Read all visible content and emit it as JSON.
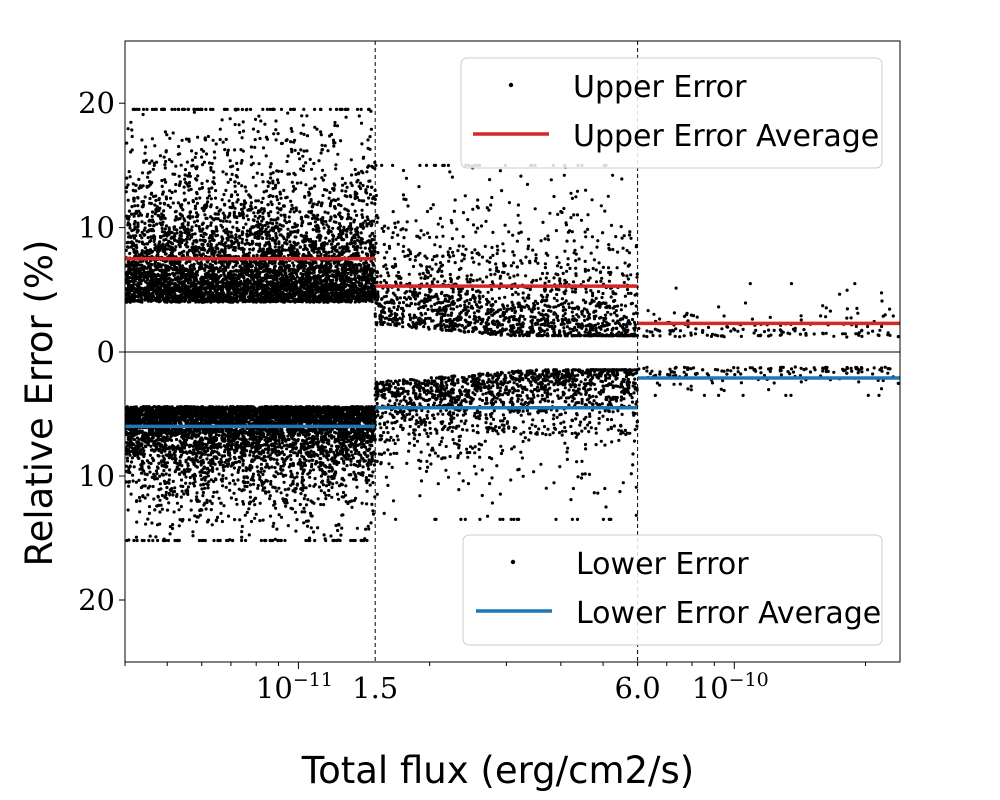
{
  "chart_data": {
    "type": "scatter",
    "xlabel": "Total flux (erg/cm2/s)",
    "ylabel": "Relative Error (%)",
    "x_scale": "log",
    "x_range": [
      4e-12,
      2.4e-10
    ],
    "x_tick_labels": {
      "major": [
        {
          "value": 1e-11,
          "base": "10",
          "exp": "−11"
        },
        {
          "value": 1e-10,
          "base": "10",
          "exp": "−10"
        }
      ],
      "boundaries": [
        {
          "value": 1.5e-11,
          "label": "1.5"
        },
        {
          "value": 6e-11,
          "label": "6.0"
        }
      ]
    },
    "panels": [
      {
        "name": "upper",
        "ylim": [
          0,
          25
        ],
        "y_inverted": false,
        "y_ticks": [
          0,
          10,
          20
        ],
        "series": [
          {
            "name": "Upper Error",
            "kind": "points",
            "color": "#000000"
          },
          {
            "name": "Upper Error Average",
            "kind": "line",
            "color": "#d62728",
            "segments": [
              {
                "x0": 4e-12,
                "x1": 1.5e-11,
                "y": 7.5
              },
              {
                "x0": 1.5e-11,
                "x1": 6e-11,
                "y": 5.3
              },
              {
                "x0": 6e-11,
                "x1": 2.4e-10,
                "y": 2.3
              }
            ]
          }
        ],
        "legend_position": "top-right"
      },
      {
        "name": "lower",
        "ylim": [
          0,
          25
        ],
        "y_inverted": true,
        "y_ticks": [
          0,
          10,
          20
        ],
        "series": [
          {
            "name": "Lower Error",
            "kind": "points",
            "color": "#000000"
          },
          {
            "name": "Lower Error Average",
            "kind": "line",
            "color": "#1f77b4",
            "segments": [
              {
                "x0": 4e-12,
                "x1": 1.5e-11,
                "y": 6.0
              },
              {
                "x0": 1.5e-11,
                "x1": 6e-11,
                "y": 4.5
              },
              {
                "x0": 6e-11,
                "x1": 2.4e-10,
                "y": 2.1
              }
            ]
          }
        ],
        "legend_position": "bottom-right"
      }
    ],
    "point_distribution": [
      {
        "x0": 4e-12,
        "x1": 1.5e-11,
        "count": 5200,
        "upper": {
          "floor": 4.0,
          "tail": 4.5,
          "max": 19.5
        },
        "lower": {
          "floor": 4.4,
          "tail": 3.0,
          "max": 15.2
        }
      },
      {
        "x0": 1.5e-11,
        "x1": 6e-11,
        "count": 1600,
        "upper": {
          "floor": 2.2,
          "tail": 4.0,
          "max": 15.0
        },
        "lower": {
          "floor": 2.4,
          "tail": 3.0,
          "max": 13.5
        }
      },
      {
        "x0": 6e-11,
        "x1": 2.4e-10,
        "count": 160,
        "upper": {
          "floor": 1.2,
          "tail": 1.2,
          "max": 5.5
        },
        "lower": {
          "floor": 1.2,
          "tail": 0.8,
          "max": 3.5
        }
      }
    ]
  }
}
